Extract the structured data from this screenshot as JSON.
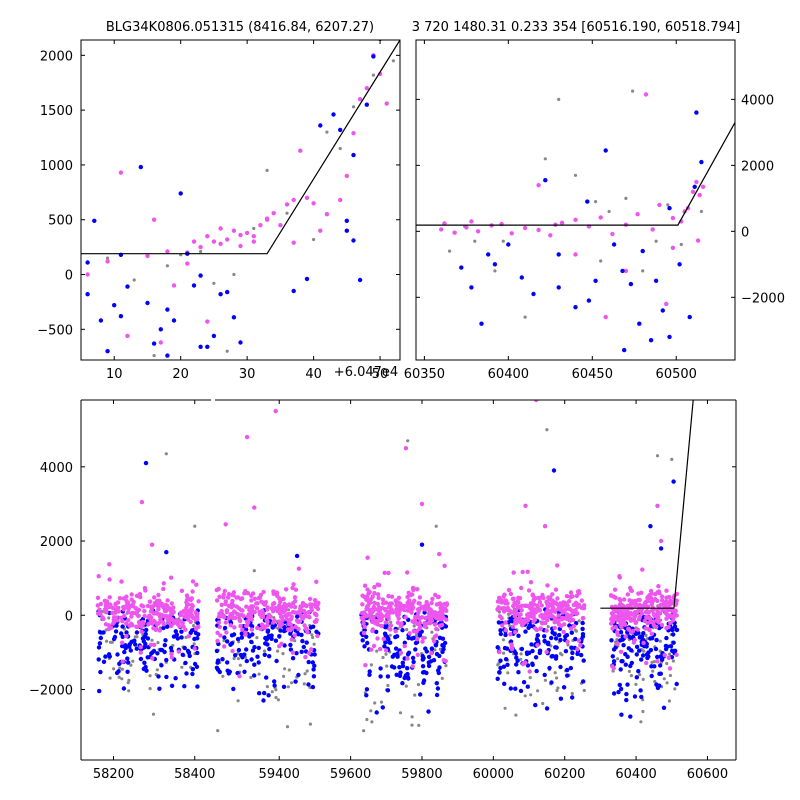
{
  "titles": {
    "top_left": "BLG34K0806.051315 (8416.84, 6207.27)",
    "top_right": "3 720 1480.31 0.233 354 [60516.190, 60518.794]"
  },
  "offset_label": "+6.047e4",
  "colors": {
    "series_blue": "#0000ff",
    "series_magenta": "#ee55ee",
    "series_gray": "#888888",
    "model_line": "#000000"
  },
  "chart_data": [
    {
      "id": "top_left",
      "type": "scatter",
      "title": "BLG34K0806.051315 (8416.84, 6207.27)",
      "x_offset": 60470,
      "xlim": [
        5,
        53
      ],
      "ylim": [
        -780,
        2140
      ],
      "xticks": [
        10,
        20,
        30,
        40,
        50
      ],
      "yticks": [
        -500,
        0,
        500,
        1000,
        1500,
        2000
      ],
      "y_axis_side": "left",
      "model": [
        [
          5,
          190
        ],
        [
          33,
          190
        ],
        [
          53,
          2140
        ]
      ],
      "series": [
        {
          "color_key": "series_gray",
          "size": 1.6,
          "points": [
            [
              9,
              150
            ],
            [
              13,
              -50
            ],
            [
              16,
              -740
            ],
            [
              20,
              180
            ],
            [
              25,
              -80
            ],
            [
              27,
              -700
            ],
            [
              28,
              0
            ],
            [
              33,
              950
            ],
            [
              36,
              560
            ],
            [
              40,
              320
            ],
            [
              42,
              1300
            ],
            [
              44,
              1150
            ],
            [
              46,
              1530
            ],
            [
              49,
              1820
            ],
            [
              52,
              1950
            ],
            [
              31,
              420
            ],
            [
              23,
              210
            ],
            [
              18,
              80
            ]
          ]
        },
        {
          "color_key": "series_magenta",
          "size": 2.2,
          "points": [
            [
              6,
              0
            ],
            [
              9,
              120
            ],
            [
              11,
              930
            ],
            [
              16,
              500
            ],
            [
              18,
              210
            ],
            [
              19,
              -100
            ],
            [
              21,
              200
            ],
            [
              22,
              300
            ],
            [
              23,
              250
            ],
            [
              24,
              350
            ],
            [
              25,
              300
            ],
            [
              26,
              280
            ],
            [
              27,
              320
            ],
            [
              28,
              400
            ],
            [
              29,
              360
            ],
            [
              30,
              380
            ],
            [
              31,
              350
            ],
            [
              32,
              450
            ],
            [
              33,
              500
            ],
            [
              34,
              560
            ],
            [
              35,
              450
            ],
            [
              36,
              640
            ],
            [
              37,
              680
            ],
            [
              38,
              1130
            ],
            [
              39,
              700
            ],
            [
              40,
              650
            ],
            [
              41,
              400
            ],
            [
              42,
              550
            ],
            [
              44,
              680
            ],
            [
              45,
              900
            ],
            [
              46,
              1290
            ],
            [
              47,
              1600
            ],
            [
              48,
              1700
            ],
            [
              49,
              2000
            ],
            [
              50,
              1830
            ],
            [
              51,
              1560
            ],
            [
              24,
              -430
            ],
            [
              12,
              -560
            ],
            [
              17,
              -620
            ],
            [
              29,
              260
            ],
            [
              31,
              300
            ],
            [
              26,
              420
            ],
            [
              37,
              290
            ],
            [
              33,
              510
            ],
            [
              15,
              170
            ],
            [
              21,
              100
            ]
          ]
        },
        {
          "color_key": "series_blue",
          "size": 2.2,
          "points": [
            [
              6,
              110
            ],
            [
              7,
              490
            ],
            [
              8,
              -420
            ],
            [
              9,
              -700
            ],
            [
              10,
              -280
            ],
            [
              11,
              -380
            ],
            [
              12,
              -110
            ],
            [
              14,
              980
            ],
            [
              15,
              -260
            ],
            [
              16,
              -630
            ],
            [
              17,
              -500
            ],
            [
              18,
              -740
            ],
            [
              19,
              -420
            ],
            [
              20,
              740
            ],
            [
              21,
              190
            ],
            [
              22,
              -100
            ],
            [
              23,
              -660
            ],
            [
              24,
              -660
            ],
            [
              25,
              -560
            ],
            [
              26,
              -180
            ],
            [
              27,
              -160
            ],
            [
              28,
              -390
            ],
            [
              29,
              -620
            ],
            [
              37,
              -150
            ],
            [
              39,
              -40
            ],
            [
              41,
              1360
            ],
            [
              43,
              1460
            ],
            [
              44,
              1320
            ],
            [
              45,
              400
            ],
            [
              46,
              1090
            ],
            [
              47,
              -50
            ],
            [
              48,
              1550
            ],
            [
              49,
              1990
            ],
            [
              50,
              2150
            ],
            [
              6,
              -180
            ],
            [
              11,
              180
            ],
            [
              18,
              -320
            ],
            [
              23,
              -10
            ],
            [
              45,
              490
            ],
            [
              46,
              310
            ]
          ]
        }
      ]
    },
    {
      "id": "top_right",
      "type": "scatter",
      "title": "3 720 1480.31 0.233 354 [60516.190, 60518.794]",
      "xlim": [
        60345,
        60535
      ],
      "ylim": [
        -3900,
        5800
      ],
      "xticks": [
        60350,
        60400,
        60450,
        60500
      ],
      "yticks": [
        -2000,
        0,
        2000,
        4000
      ],
      "y_axis_side": "right",
      "model": [
        [
          60345,
          190
        ],
        [
          60501,
          190
        ],
        [
          60535,
          3300
        ]
      ],
      "series": [
        {
          "color_key": "series_gray",
          "size": 1.6,
          "points": [
            [
              60374,
              150
            ],
            [
              60380,
              -300
            ],
            [
              60392,
              -1200
            ],
            [
              60410,
              -2600
            ],
            [
              60422,
              2200
            ],
            [
              60440,
              1700
            ],
            [
              60455,
              -900
            ],
            [
              60460,
              600
            ],
            [
              60470,
              1000
            ],
            [
              60474,
              4250
            ],
            [
              60480,
              -1200
            ],
            [
              60488,
              -300
            ],
            [
              60495,
              800
            ],
            [
              60503,
              -400
            ],
            [
              60510,
              1200
            ],
            [
              60515,
              600
            ],
            [
              60430,
              4000
            ],
            [
              60397,
              -300
            ],
            [
              60365,
              -600
            ],
            [
              60452,
              900
            ]
          ]
        },
        {
          "color_key": "series_magenta",
          "size": 2.2,
          "points": [
            [
              60360,
              60
            ],
            [
              60368,
              -40
            ],
            [
              60375,
              120
            ],
            [
              60382,
              0
            ],
            [
              60390,
              180
            ],
            [
              60396,
              220
            ],
            [
              60402,
              -60
            ],
            [
              60410,
              100
            ],
            [
              60418,
              40
            ],
            [
              60425,
              -120
            ],
            [
              60432,
              260
            ],
            [
              60440,
              350
            ],
            [
              60448,
              150
            ],
            [
              60455,
              420
            ],
            [
              60462,
              -80
            ],
            [
              60470,
              200
            ],
            [
              60477,
              520
            ],
            [
              60482,
              4150
            ],
            [
              60486,
              60
            ],
            [
              60490,
              800
            ],
            [
              60494,
              -2200
            ],
            [
              60498,
              400
            ],
            [
              60503,
              300
            ],
            [
              60507,
              700
            ],
            [
              60510,
              1200
            ],
            [
              60512,
              1500
            ],
            [
              60514,
              1100
            ],
            [
              60516,
              1350
            ],
            [
              60418,
              1400
            ],
            [
              60362,
              240
            ],
            [
              60440,
              -700
            ],
            [
              60470,
              -1200
            ],
            [
              60458,
              -2600
            ],
            [
              60505,
              600
            ],
            [
              60513,
              -280
            ],
            [
              60498,
              -500
            ],
            [
              60378,
              300
            ],
            [
              60428,
              200
            ]
          ]
        },
        {
          "color_key": "series_blue",
          "size": 2.2,
          "points": [
            [
              60372,
              -1100
            ],
            [
              60378,
              -1700
            ],
            [
              60384,
              -2800
            ],
            [
              60388,
              -700
            ],
            [
              60392,
              -1000
            ],
            [
              60400,
              -400
            ],
            [
              60408,
              -1400
            ],
            [
              60415,
              -1900
            ],
            [
              60422,
              1550
            ],
            [
              60430,
              -700
            ],
            [
              60440,
              -2300
            ],
            [
              60447,
              900
            ],
            [
              60452,
              -1500
            ],
            [
              60458,
              2450
            ],
            [
              60463,
              -400
            ],
            [
              60468,
              -1200
            ],
            [
              60473,
              -1600
            ],
            [
              60478,
              -2800
            ],
            [
              60480,
              -600
            ],
            [
              60488,
              -1500
            ],
            [
              60492,
              -2400
            ],
            [
              60496,
              -3200
            ],
            [
              60502,
              -1000
            ],
            [
              60508,
              -2600
            ],
            [
              60512,
              3600
            ],
            [
              60515,
              2100
            ],
            [
              60511,
              1350
            ],
            [
              60496,
              700
            ],
            [
              60469,
              -3600
            ],
            [
              60485,
              -3300
            ],
            [
              60448,
              -2100
            ],
            [
              60430,
              -1700
            ]
          ]
        }
      ]
    },
    {
      "id": "bottom",
      "type": "scatter",
      "xlim": [
        58120,
        60680
      ],
      "ylim": [
        -3900,
        5800
      ],
      "broken_x": [
        58440,
        59220
      ],
      "xticks": [
        58200,
        58400,
        59400,
        59600,
        59800,
        60000,
        60200,
        60400,
        60600
      ],
      "yticks": [
        -2000,
        0,
        2000,
        4000
      ],
      "y_axis_side": "left",
      "model": [
        [
          60300,
          190
        ],
        [
          60506,
          190
        ],
        [
          60560,
          5800
        ]
      ],
      "seasons": [
        [
          58160,
          58410
        ],
        [
          59225,
          59510
        ],
        [
          59630,
          59870
        ],
        [
          60010,
          60255
        ],
        [
          60330,
          60515
        ]
      ],
      "outliers": {
        "series_magenta": [
          [
            58270,
            3050
          ],
          [
            58295,
            1900
          ],
          [
            59250,
            2450
          ],
          [
            59310,
            4800
          ],
          [
            59330,
            2900
          ],
          [
            59390,
            5500
          ],
          [
            59755,
            4500
          ],
          [
            59800,
            3000
          ],
          [
            60090,
            2950
          ],
          [
            60120,
            5800
          ],
          [
            60145,
            2400
          ],
          [
            60460,
            2950
          ],
          [
            60470,
            2000
          ]
        ],
        "series_blue": [
          [
            58280,
            4100
          ],
          [
            58330,
            1700
          ],
          [
            59450,
            1600
          ],
          [
            59800,
            1900
          ],
          [
            60170,
            3900
          ],
          [
            60440,
            2400
          ],
          [
            60470,
            1800
          ],
          [
            60505,
            3600
          ]
        ],
        "series_gray": [
          [
            58330,
            4350
          ],
          [
            59330,
            1200
          ],
          [
            59760,
            4700
          ],
          [
            60150,
            5000
          ],
          [
            60460,
            4300
          ],
          [
            58400,
            2400
          ],
          [
            59840,
            2400
          ],
          [
            60500,
            4200
          ]
        ]
      }
    }
  ]
}
